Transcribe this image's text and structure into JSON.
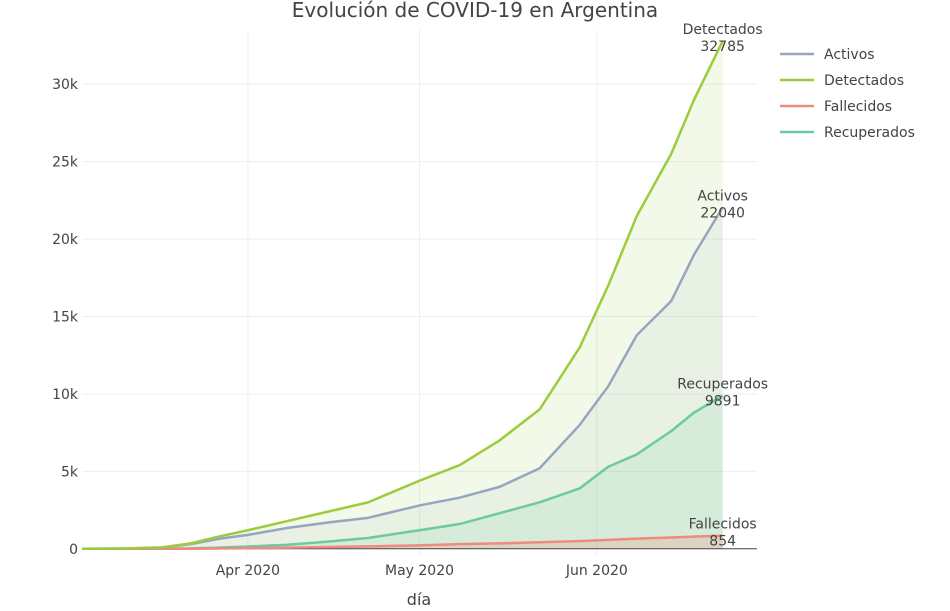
{
  "chart_data": {
    "type": "area",
    "title": "Evolución de COVID-19 en Argentina",
    "xlabel": "día",
    "ylabel": "",
    "x_range": [
      "2020-03-03",
      "2020-06-29"
    ],
    "ylim": [
      -400,
      33500
    ],
    "x_ticks": [
      {
        "date": "2020-04-01",
        "label": "Apr 2020"
      },
      {
        "date": "2020-05-01",
        "label": "May 2020"
      },
      {
        "date": "2020-06-01",
        "label": "Jun 2020"
      }
    ],
    "y_ticks": [
      {
        "value": 0,
        "label": "0"
      },
      {
        "value": 5000,
        "label": "5k"
      },
      {
        "value": 10000,
        "label": "10k"
      },
      {
        "value": 15000,
        "label": "15k"
      },
      {
        "value": 20000,
        "label": "20k"
      },
      {
        "value": 25000,
        "label": "25k"
      },
      {
        "value": 30000,
        "label": "30k"
      }
    ],
    "grid": true,
    "legend_position": "top-right",
    "legend": [
      "Activos",
      "Detectados",
      "Fallecidos",
      "Recuperados"
    ],
    "x": [
      "2020-03-03",
      "2020-03-10",
      "2020-03-17",
      "2020-03-22",
      "2020-03-27",
      "2020-04-01",
      "2020-04-08",
      "2020-04-15",
      "2020-04-22",
      "2020-05-01",
      "2020-05-08",
      "2020-05-15",
      "2020-05-22",
      "2020-05-29",
      "2020-06-03",
      "2020-06-08",
      "2020-06-14",
      "2020-06-18",
      "2020-06-23"
    ],
    "series": [
      {
        "name": "Activos",
        "color": "#97a6c0",
        "values": [
          1,
          20,
          80,
          300,
          650,
          900,
          1350,
          1700,
          2000,
          2800,
          3300,
          4000,
          5200,
          8000,
          10500,
          13800,
          16000,
          19000,
          22040
        ],
        "end_label": {
          "name": "Activos",
          "value": "22040"
        }
      },
      {
        "name": "Detectados",
        "color": "#9ccc3e",
        "values": [
          1,
          20,
          90,
          350,
          800,
          1200,
          1800,
          2400,
          3000,
          4400,
          5400,
          7000,
          9000,
          13000,
          17000,
          21500,
          25500,
          29000,
          32785
        ],
        "end_label": {
          "name": "Detectados",
          "value": "32785"
        }
      },
      {
        "name": "Fallecidos",
        "color": "#ee8a7e",
        "values": [
          0,
          0,
          2,
          5,
          20,
          40,
          80,
          120,
          160,
          220,
          300,
          350,
          420,
          500,
          580,
          660,
          730,
          790,
          854
        ],
        "end_label": {
          "name": "Fallecidos",
          "value": "854"
        }
      },
      {
        "name": "Recuperados",
        "color": "#6bcaa0",
        "values": [
          0,
          0,
          0,
          30,
          80,
          150,
          260,
          460,
          700,
          1200,
          1600,
          2300,
          3000,
          3900,
          5300,
          6100,
          7600,
          8800,
          9891
        ],
        "end_label": {
          "name": "Recuperados",
          "value": "9891"
        }
      }
    ]
  }
}
